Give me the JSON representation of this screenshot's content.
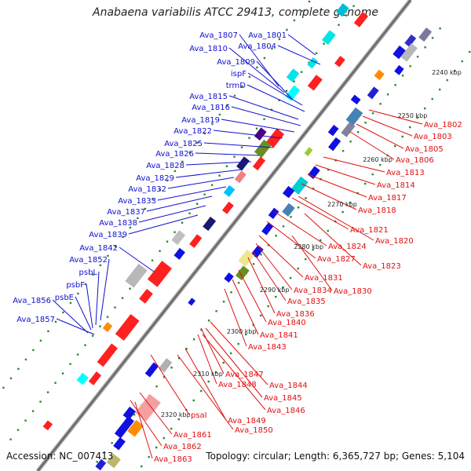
{
  "title": "Anabaena variabilis ATCC 29413, complete genome",
  "accession": "Accession: NC_007413",
  "topology": "Topology: circular; Length: 6,365,727 bp; Genes: 5,104",
  "colors": {
    "plus_strand_label": "#1010d0",
    "minus_strand_label": "#e01010",
    "backbone": "#808080",
    "tick": "#2a8a2a"
  },
  "kbp_ticks": [
    "2240 kbp",
    "2250 kbp",
    "2260 kbp",
    "2270 kbp",
    "2280 kbp",
    "2290 kbp",
    "2300 kbp",
    "2310 kbp",
    "2320 kbp"
  ],
  "plus_labels": [
    "Ava_1807",
    "Ava_1801",
    "Ava_1810",
    "Ava_1804",
    "Ava_1809",
    "ispF",
    "trmD",
    "Ava_1815",
    "Ava_1816",
    "Ava_1819",
    "Ava_1822",
    "Ava_1825",
    "Ava_1826",
    "Ava_1828",
    "Ava_1829",
    "Ava_1832",
    "Ava_1833",
    "Ava_1837",
    "Ava_1838",
    "Ava_1839",
    "Ava_1842",
    "Ava_1852",
    "psbL",
    "psbF",
    "psbE",
    "Ava_1856",
    "Ava_1857"
  ],
  "minus_labels": [
    "Ava_1802",
    "Ava_1803",
    "Ava_1805",
    "Ava_1806",
    "Ava_1813",
    "Ava_1814",
    "Ava_1817",
    "Ava_1818",
    "Ava_1821",
    "Ava_1820",
    "Ava_1824",
    "Ava_1827",
    "Ava_1823",
    "Ava_1831",
    "Ava_1834",
    "Ava_1830",
    "Ava_1835",
    "Ava_1836",
    "Ava_1840",
    "Ava_1841",
    "Ava_1843",
    "Ava_1847",
    "Ava_1848",
    "Ava_1844",
    "Ava_1845",
    "Ava_1846",
    "psaI",
    "Ava_1849",
    "Ava_1850",
    "Ava_1861",
    "Ava_1862",
    "Ava_1863"
  ]
}
